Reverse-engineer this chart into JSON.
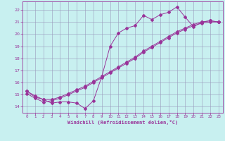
{
  "xlabel": "Windchill (Refroidissement éolien,°C)",
  "bg_color": "#c8f0f0",
  "line_color": "#993399",
  "grid_color": "#9999bb",
  "xlim": [
    -0.5,
    23.5
  ],
  "ylim": [
    13.5,
    22.7
  ],
  "yticks": [
    14,
    15,
    16,
    17,
    18,
    19,
    20,
    21,
    22
  ],
  "xticks": [
    0,
    1,
    2,
    3,
    4,
    5,
    6,
    7,
    8,
    9,
    10,
    11,
    12,
    13,
    14,
    15,
    16,
    17,
    18,
    19,
    20,
    21,
    22,
    23
  ],
  "line1_x": [
    0,
    1,
    2,
    3,
    4,
    5,
    6,
    7,
    8,
    9,
    10,
    11,
    12,
    13,
    14,
    15,
    16,
    17,
    18,
    19,
    20,
    21,
    22,
    23
  ],
  "line1_y": [
    15.3,
    14.8,
    14.6,
    14.3,
    14.4,
    14.4,
    14.3,
    13.85,
    14.5,
    16.5,
    19.0,
    20.1,
    20.5,
    20.7,
    21.55,
    21.2,
    21.6,
    21.8,
    22.25,
    21.4,
    20.6,
    21.0,
    21.1,
    21.0
  ],
  "line2_x": [
    0,
    1,
    2,
    3,
    4,
    5,
    6,
    7,
    8,
    9,
    10,
    11,
    12,
    13,
    14,
    15,
    16,
    17,
    18,
    19,
    20,
    21,
    22,
    23
  ],
  "line2_y": [
    15.1,
    14.7,
    14.4,
    14.5,
    14.7,
    15.0,
    15.3,
    15.6,
    16.0,
    16.4,
    16.8,
    17.2,
    17.6,
    18.0,
    18.5,
    18.9,
    19.3,
    19.7,
    20.1,
    20.4,
    20.7,
    20.9,
    21.0,
    21.0
  ],
  "line3_x": [
    0,
    1,
    2,
    3,
    4,
    5,
    6,
    7,
    8,
    9,
    10,
    11,
    12,
    13,
    14,
    15,
    16,
    17,
    18,
    19,
    20,
    21,
    22,
    23
  ],
  "line3_y": [
    15.3,
    14.9,
    14.6,
    14.6,
    14.8,
    15.1,
    15.4,
    15.7,
    16.1,
    16.5,
    16.9,
    17.3,
    17.7,
    18.1,
    18.6,
    19.0,
    19.4,
    19.8,
    20.2,
    20.5,
    20.8,
    21.0,
    21.1,
    21.0
  ]
}
